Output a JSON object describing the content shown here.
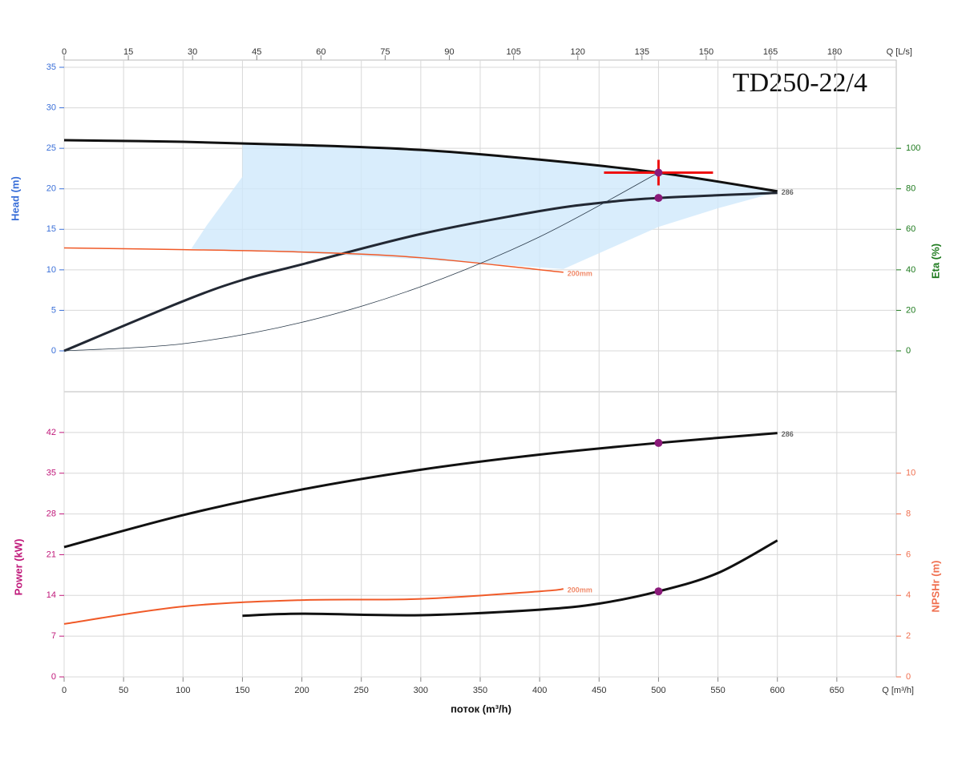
{
  "chart_data": [
    {
      "type": "line",
      "title": "TD250-22/4",
      "x2label": "Q [L/s]",
      "x2lim": [
        0,
        194.4
      ],
      "x2ticks": [
        0,
        15,
        30,
        45,
        60,
        75,
        90,
        105,
        120,
        135,
        150,
        165,
        180
      ],
      "xlim": [
        0,
        700
      ],
      "ylabel": "Head (m)",
      "ylim": [
        0,
        35
      ],
      "yticks": [
        0,
        5,
        10,
        15,
        20,
        25,
        30,
        35
      ],
      "ycolor": "#3a6fd8",
      "y2label": "Eta (%)",
      "y2lim": [
        0,
        140
      ],
      "y2ticks": [
        0,
        20,
        40,
        60,
        80,
        100
      ],
      "y2color": "#1e7a1e",
      "grid": true,
      "operating_range": {
        "color": "#cfe8fb",
        "x": [
          150,
          200,
          300,
          400,
          500,
          600,
          550,
          500,
          420,
          300,
          200,
          107,
          120,
          150
        ],
        "values": [
          25.5,
          25.4,
          24.8,
          23.6,
          22,
          19.6,
          17.6,
          15.3,
          10.1,
          11.3,
          12.1,
          12.6,
          15.5,
          21.5
        ]
      },
      "series": [
        {
          "name": "286",
          "color": "#111111",
          "width": 3,
          "x": [
            0,
            100,
            200,
            300,
            400,
            500,
            600
          ],
          "values": [
            26,
            25.8,
            25.4,
            24.8,
            23.6,
            22,
            19.7
          ]
        },
        {
          "color": "#222833",
          "width": 3,
          "axis": "y2",
          "x": [
            0,
            100,
            150,
            200,
            300,
            400,
            450,
            500,
            600
          ],
          "values": [
            0,
            24.5,
            35,
            42.7,
            57.7,
            69,
            73,
            75.5,
            78
          ]
        },
        {
          "name": "200mm",
          "color": "#f05a28",
          "width": 1.5,
          "x": [
            0,
            100,
            200,
            300,
            420
          ],
          "values": [
            12.7,
            12.5,
            12.2,
            11.5,
            9.7
          ]
        },
        {
          "color": "#2a3a4a",
          "width": 0.8,
          "x": [
            0,
            100,
            200,
            300,
            400,
            500
          ],
          "values": [
            0,
            0.88,
            3.52,
            7.92,
            14.08,
            22
          ]
        }
      ],
      "points": [
        {
          "x": 500,
          "y": 22,
          "color": "#8b1a7a"
        },
        {
          "x": 500,
          "y": 75.5,
          "axis": "y2",
          "color": "#8b1a7a"
        }
      ],
      "operating_point": {
        "x": 500,
        "y": 22,
        "color": "#ee1111"
      }
    },
    {
      "type": "line",
      "xlabel": "поток (m³/h)",
      "xunit": "Q [m³/h]",
      "xlim": [
        0,
        700
      ],
      "xticks": [
        0,
        50,
        100,
        150,
        200,
        250,
        300,
        350,
        400,
        450,
        500,
        550,
        600,
        650
      ],
      "ylabel": "Power (kW)",
      "ylim": [
        0,
        49
      ],
      "yticks": [
        0,
        7,
        14,
        21,
        28,
        35,
        42
      ],
      "ycolor": "#c0187a",
      "y2label": "NPSHr (m)",
      "y2lim": [
        0,
        14
      ],
      "y2ticks": [
        0,
        2,
        4,
        6,
        8,
        10
      ],
      "y2color": "#f07050",
      "grid": true,
      "series": [
        {
          "name": "286",
          "color": "#111111",
          "width": 3,
          "x": [
            0,
            100,
            200,
            300,
            400,
            500,
            600
          ],
          "values": [
            22.3,
            27.8,
            32.2,
            35.6,
            38.2,
            40.2,
            41.9
          ]
        },
        {
          "name": "200mm",
          "color": "#f05a28",
          "width": 2,
          "x": [
            0,
            100,
            200,
            300,
            400,
            420
          ],
          "values": [
            9.1,
            12.1,
            13.2,
            13.4,
            14.7,
            15.1
          ]
        },
        {
          "color": "#111111",
          "width": 3,
          "axis": "y2",
          "x": [
            150,
            200,
            300,
            400,
            450,
            500,
            550,
            600
          ],
          "values": [
            3.0,
            3.1,
            3.03,
            3.3,
            3.6,
            4.2,
            5.1,
            6.7
          ]
        }
      ],
      "points": [
        {
          "x": 500,
          "y": 40.2,
          "color": "#8b1a7a"
        },
        {
          "x": 500,
          "y": 4.2,
          "axis": "y2",
          "color": "#8b1a7a"
        }
      ]
    }
  ]
}
